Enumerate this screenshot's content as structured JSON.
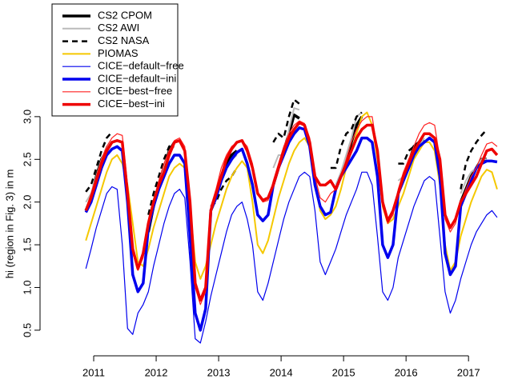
{
  "chart_data": {
    "type": "line",
    "y_label": "hi (region in Fig. 3) in m",
    "xlim": [
      2010.15,
      2017.6
    ],
    "ylim": [
      0.2,
      4.3
    ],
    "xticks": [
      2011,
      2012,
      2013,
      2014,
      2015,
      2016,
      2017
    ],
    "yticks": [
      0.5,
      {
        "value": 1,
        "label": "1.0"
      },
      1.5,
      {
        "value": 2,
        "label": "2.0"
      },
      2.5,
      {
        "value": 3,
        "label": "3.0"
      }
    ],
    "legend": "top-left",
    "x": [
      2010.875,
      2010.958,
      2011.042,
      2011.125,
      2011.208,
      2011.292,
      2011.375,
      2011.458,
      2011.542,
      2011.625,
      2011.708,
      2011.792,
      2011.875,
      2011.958,
      2012.042,
      2012.125,
      2012.208,
      2012.292,
      2012.375,
      2012.458,
      2012.542,
      2012.625,
      2012.708,
      2012.792,
      2012.875,
      2012.958,
      2013.042,
      2013.125,
      2013.208,
      2013.292,
      2013.375,
      2013.458,
      2013.542,
      2013.625,
      2013.708,
      2013.792,
      2013.875,
      2013.958,
      2014.042,
      2014.125,
      2014.208,
      2014.292,
      2014.375,
      2014.458,
      2014.542,
      2014.625,
      2014.708,
      2014.792,
      2014.875,
      2014.958,
      2015.042,
      2015.125,
      2015.208,
      2015.292,
      2015.375,
      2015.458,
      2015.542,
      2015.625,
      2015.708,
      2015.792,
      2015.875,
      2015.958,
      2016.042,
      2016.125,
      2016.208,
      2016.292,
      2016.375,
      2016.458,
      2016.542,
      2016.625,
      2016.708,
      2016.792,
      2016.875,
      2016.958,
      2017.042,
      2017.125,
      2017.208,
      2017.292,
      2017.375,
      2017.458
    ],
    "series": [
      {
        "name": "CS2 CPOM",
        "color": "#000000",
        "linewidth": 3.5,
        "dashed": false,
        "values": [
          1.9,
          2.05,
          2.3,
          2.5,
          2.6,
          2.7,
          null,
          null,
          null,
          null,
          null,
          null,
          1.65,
          1.95,
          2.2,
          2.4,
          2.6,
          2.7,
          null,
          null,
          null,
          null,
          null,
          null,
          1.9,
          2.05,
          2.3,
          2.45,
          2.55,
          2.6,
          null,
          null,
          null,
          null,
          null,
          null,
          2.2,
          2.4,
          2.6,
          2.8,
          3.02,
          2.98,
          null,
          null,
          null,
          null,
          null,
          null,
          2.15,
          2.3,
          2.45,
          2.7,
          2.9,
          3.0,
          null,
          null,
          null,
          null,
          null,
          null,
          2.1,
          2.3,
          2.45,
          2.65,
          2.7,
          2.72,
          null,
          null,
          null,
          null,
          null,
          null,
          2.0,
          2.15,
          2.3,
          2.4,
          2.5,
          2.5,
          null,
          null
        ]
      },
      {
        "name": "CS2 AWI",
        "color": "#bbbbbb",
        "linewidth": 2,
        "dashed": false,
        "values": [
          2.0,
          2.1,
          2.3,
          2.5,
          2.65,
          2.7,
          null,
          null,
          null,
          null,
          null,
          null,
          1.75,
          2.0,
          2.2,
          2.4,
          2.6,
          2.65,
          null,
          null,
          null,
          null,
          null,
          null,
          1.95,
          2.1,
          2.25,
          2.4,
          2.5,
          2.55,
          null,
          null,
          null,
          null,
          null,
          null,
          2.4,
          2.55,
          2.55,
          2.85,
          3.1,
          3.08,
          null,
          null,
          null,
          null,
          null,
          null,
          2.2,
          2.35,
          2.55,
          2.75,
          3.0,
          3.05,
          null,
          null,
          null,
          null,
          null,
          null,
          2.25,
          2.3,
          2.5,
          2.6,
          2.65,
          2.75,
          null,
          null,
          null,
          null,
          null,
          null,
          2.1,
          2.25,
          2.35,
          2.4,
          2.5,
          2.5,
          null,
          null
        ]
      },
      {
        "name": "CS2 NASA",
        "color": "#000000",
        "linewidth": 2.5,
        "dashed": true,
        "values": [
          2.12,
          2.2,
          2.4,
          2.6,
          2.75,
          2.82,
          null,
          null,
          null,
          null,
          null,
          null,
          1.85,
          2.1,
          2.3,
          2.5,
          2.65,
          2.7,
          null,
          null,
          null,
          null,
          null,
          null,
          1.95,
          2.0,
          2.15,
          2.25,
          2.3,
          2.4,
          null,
          null,
          null,
          null,
          null,
          null,
          2.7,
          2.8,
          2.75,
          3.0,
          3.2,
          3.15,
          null,
          null,
          null,
          null,
          null,
          2.4,
          2.4,
          2.65,
          2.8,
          2.85,
          3.0,
          3.05,
          null,
          null,
          null,
          null,
          null,
          null,
          2.45,
          2.45,
          2.6,
          2.65,
          2.65,
          2.7,
          null,
          null,
          null,
          null,
          null,
          null,
          2.15,
          2.45,
          2.6,
          2.7,
          2.78,
          2.85,
          null,
          null
        ]
      },
      {
        "name": "PIOMAS",
        "color": "#f5c800",
        "linewidth": 2,
        "dashed": false,
        "values": [
          1.55,
          1.75,
          1.95,
          2.15,
          2.35,
          2.5,
          2.55,
          2.45,
          2.2,
          1.75,
          1.3,
          1.25,
          1.45,
          1.7,
          1.9,
          2.1,
          2.3,
          2.4,
          2.45,
          2.4,
          1.95,
          1.3,
          1.1,
          1.25,
          1.5,
          1.75,
          1.95,
          2.15,
          2.3,
          2.4,
          2.48,
          2.4,
          2.0,
          1.5,
          1.4,
          1.55,
          1.8,
          2.05,
          2.25,
          2.45,
          2.6,
          2.7,
          2.75,
          2.65,
          2.3,
          1.9,
          1.8,
          1.85,
          1.95,
          2.15,
          2.4,
          2.6,
          2.8,
          3.0,
          3.05,
          2.9,
          2.5,
          1.95,
          1.75,
          1.8,
          1.95,
          2.1,
          2.3,
          2.5,
          2.6,
          2.7,
          2.7,
          2.6,
          2.2,
          1.5,
          1.2,
          1.3,
          1.6,
          1.8,
          2.0,
          2.15,
          2.3,
          2.38,
          2.35,
          2.15
        ]
      },
      {
        "name": "CICE−default−free",
        "color": "#0000ee",
        "linewidth": 1.2,
        "dashed": false,
        "values": [
          1.22,
          1.45,
          1.7,
          1.9,
          2.1,
          2.18,
          2.15,
          1.5,
          0.52,
          0.45,
          0.7,
          0.8,
          0.95,
          1.25,
          1.5,
          1.75,
          1.95,
          2.1,
          2.15,
          2.05,
          1.3,
          0.4,
          0.35,
          0.6,
          0.9,
          1.15,
          1.4,
          1.65,
          1.85,
          1.95,
          2.0,
          1.8,
          1.5,
          0.95,
          0.85,
          1.05,
          1.3,
          1.55,
          1.8,
          2.0,
          2.15,
          2.3,
          2.35,
          2.3,
          1.9,
          1.3,
          1.15,
          1.3,
          1.45,
          1.65,
          1.85,
          2.0,
          2.15,
          2.35,
          2.35,
          2.2,
          1.6,
          0.95,
          0.85,
          1.0,
          1.35,
          1.55,
          1.75,
          1.95,
          2.1,
          2.25,
          2.3,
          2.25,
          1.6,
          0.95,
          0.7,
          0.85,
          1.1,
          1.3,
          1.5,
          1.65,
          1.75,
          1.85,
          1.9,
          1.82
        ]
      },
      {
        "name": "CICE−default−ini",
        "color": "#0000ee",
        "linewidth": 3.5,
        "dashed": false,
        "values": [
          1.88,
          2.0,
          2.2,
          2.4,
          2.55,
          2.62,
          2.65,
          2.6,
          2.0,
          1.15,
          0.95,
          1.05,
          1.7,
          1.95,
          2.15,
          2.3,
          2.45,
          2.55,
          2.55,
          2.45,
          1.6,
          0.7,
          0.5,
          0.75,
          1.9,
          2.05,
          2.25,
          2.4,
          2.5,
          2.58,
          2.62,
          2.45,
          2.2,
          1.85,
          1.78,
          1.85,
          2.2,
          2.4,
          2.55,
          2.7,
          2.8,
          2.87,
          2.85,
          2.65,
          2.2,
          1.95,
          1.85,
          1.88,
          2.15,
          2.3,
          2.4,
          2.5,
          2.6,
          2.75,
          2.75,
          2.7,
          2.3,
          1.5,
          1.35,
          1.5,
          2.1,
          2.25,
          2.4,
          2.55,
          2.65,
          2.7,
          2.75,
          2.7,
          2.3,
          1.4,
          1.15,
          1.25,
          1.95,
          2.1,
          2.25,
          2.4,
          2.45,
          2.48,
          2.48,
          2.47
        ]
      },
      {
        "name": "CICE−best−free",
        "color": "#ff2020",
        "linewidth": 1.2,
        "dashed": false,
        "values": [
          1.92,
          2.1,
          2.3,
          2.5,
          2.65,
          2.75,
          2.8,
          2.78,
          2.2,
          1.4,
          1.2,
          1.35,
          1.7,
          2.0,
          2.25,
          2.45,
          2.6,
          2.72,
          2.75,
          2.65,
          2.0,
          1.0,
          0.8,
          0.95,
          1.95,
          2.15,
          2.4,
          2.55,
          2.65,
          2.7,
          2.72,
          2.65,
          2.45,
          2.1,
          2.0,
          2.02,
          2.25,
          2.45,
          2.65,
          2.8,
          2.9,
          2.95,
          2.92,
          2.75,
          2.3,
          2.05,
          2.0,
          2.1,
          2.15,
          2.3,
          2.5,
          2.7,
          2.85,
          2.95,
          3.0,
          3.0,
          2.6,
          1.95,
          1.75,
          1.85,
          2.15,
          2.35,
          2.5,
          2.65,
          2.8,
          2.9,
          2.93,
          2.9,
          2.5,
          1.8,
          1.65,
          1.75,
          2.0,
          2.15,
          2.3,
          2.4,
          2.55,
          2.68,
          2.7,
          2.65
        ]
      },
      {
        "name": "CICE−best−ini",
        "color": "#ee0000",
        "linewidth": 3.5,
        "dashed": false,
        "values": [
          1.9,
          2.05,
          2.25,
          2.45,
          2.6,
          2.7,
          2.72,
          2.7,
          2.1,
          1.45,
          1.22,
          1.4,
          1.75,
          2.0,
          2.2,
          2.35,
          2.55,
          2.7,
          2.72,
          2.6,
          2.0,
          1.05,
          0.85,
          1.0,
          1.9,
          2.1,
          2.3,
          2.5,
          2.62,
          2.7,
          2.72,
          2.6,
          2.4,
          2.1,
          2.02,
          2.05,
          2.2,
          2.4,
          2.6,
          2.75,
          2.85,
          2.93,
          2.9,
          2.7,
          2.3,
          2.2,
          2.2,
          2.25,
          2.15,
          2.3,
          2.45,
          2.6,
          2.75,
          2.85,
          2.9,
          2.9,
          2.6,
          2.0,
          1.78,
          1.9,
          2.1,
          2.3,
          2.45,
          2.6,
          2.7,
          2.8,
          2.8,
          2.75,
          2.5,
          1.85,
          1.7,
          1.8,
          2.0,
          2.1,
          2.2,
          2.3,
          2.45,
          2.6,
          2.62,
          2.55
        ]
      }
    ]
  }
}
